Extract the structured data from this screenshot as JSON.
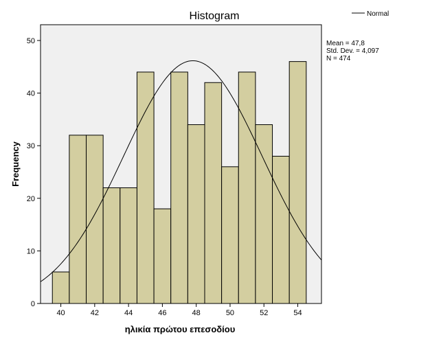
{
  "chart_data": {
    "type": "bar",
    "title": "Histogram",
    "xlabel": "ηλικία πρώτου επεσοδίου",
    "ylabel": "Frequency",
    "bin_width": 1,
    "bins": [
      {
        "x": 40,
        "value": 6
      },
      {
        "x": 41,
        "value": 32
      },
      {
        "x": 42,
        "value": 32
      },
      {
        "x": 43,
        "value": 22
      },
      {
        "x": 44,
        "value": 22
      },
      {
        "x": 45,
        "value": 44
      },
      {
        "x": 46,
        "value": 18
      },
      {
        "x": 47,
        "value": 44
      },
      {
        "x": 48,
        "value": 34
      },
      {
        "x": 49,
        "value": 42
      },
      {
        "x": 50,
        "value": 26
      },
      {
        "x": 51,
        "value": 44
      },
      {
        "x": 52,
        "value": 34
      },
      {
        "x": 53,
        "value": 28
      },
      {
        "x": 54,
        "value": 46
      }
    ],
    "xlim": [
      38.8,
      55.4
    ],
    "ylim": [
      0,
      53
    ],
    "x_ticks": [
      40,
      42,
      44,
      46,
      48,
      50,
      52,
      54
    ],
    "y_ticks": [
      0,
      10,
      20,
      30,
      40,
      50
    ],
    "grid": false,
    "bar_color": "#d3cea0",
    "plot_background": "#f0f0f0",
    "normal_curve": {
      "mean": 47.8,
      "sd": 4.097,
      "n": 474,
      "color": "#000000"
    },
    "legend": {
      "position": "top-right",
      "entries": [
        "Normal"
      ]
    },
    "stats": [
      "Mean = 47,8",
      "Std. Dev. = 4,097",
      "N = 474"
    ]
  }
}
